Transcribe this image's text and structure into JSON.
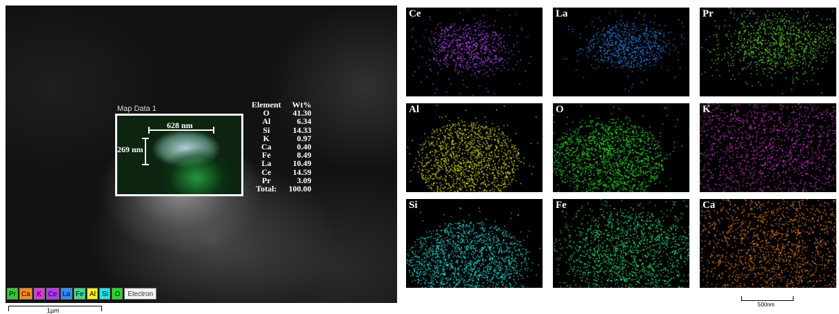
{
  "sem_panel": {
    "map_label": "Map Data 1",
    "width_label": "628 nm",
    "height_label": "269 nm",
    "table": {
      "headers": [
        "Element",
        "Wt%"
      ],
      "rows": [
        [
          "O",
          "41.30"
        ],
        [
          "Al",
          "6.34"
        ],
        [
          "Si",
          "14.33"
        ],
        [
          "K",
          "0.97"
        ],
        [
          "Ca",
          "0.40"
        ],
        [
          "Fe",
          "8.49"
        ],
        [
          "La",
          "10.49"
        ],
        [
          "Ce",
          "14.59"
        ],
        [
          "Pr",
          "3.09"
        ],
        [
          "Total:",
          "100.00"
        ]
      ]
    },
    "legend": [
      {
        "label": "Pr",
        "color": "#33cc33"
      },
      {
        "label": "Ca",
        "color": "#ff8c1a"
      },
      {
        "label": "K",
        "color": "#e033e0"
      },
      {
        "label": "Ce",
        "color": "#b833ff"
      },
      {
        "label": "La",
        "color": "#2e8cff"
      },
      {
        "label": "Fe",
        "color": "#33e08c"
      },
      {
        "label": "Al",
        "color": "#ffee22"
      },
      {
        "label": "Si",
        "color": "#22e8e8"
      },
      {
        "label": "O",
        "color": "#22dd22"
      },
      {
        "label": "Electron",
        "color": "#f4f4f4"
      }
    ],
    "scale_bar": "1µm"
  },
  "element_maps": [
    {
      "label": "Ce",
      "color": "#b94bff"
    },
    {
      "label": "La",
      "color": "#2f8cff"
    },
    {
      "label": "Pr",
      "color": "#5fdc2e"
    },
    {
      "label": "Al",
      "color": "#e8e222"
    },
    {
      "label": "O",
      "color": "#2ee82e"
    },
    {
      "label": "K",
      "color": "#e23ce2"
    },
    {
      "label": "Si",
      "color": "#26e4e4"
    },
    {
      "label": "Fe",
      "color": "#2ee87c"
    },
    {
      "label": "Ca",
      "color": "#ff8a22"
    }
  ],
  "maps_scale_bar": "500nm"
}
